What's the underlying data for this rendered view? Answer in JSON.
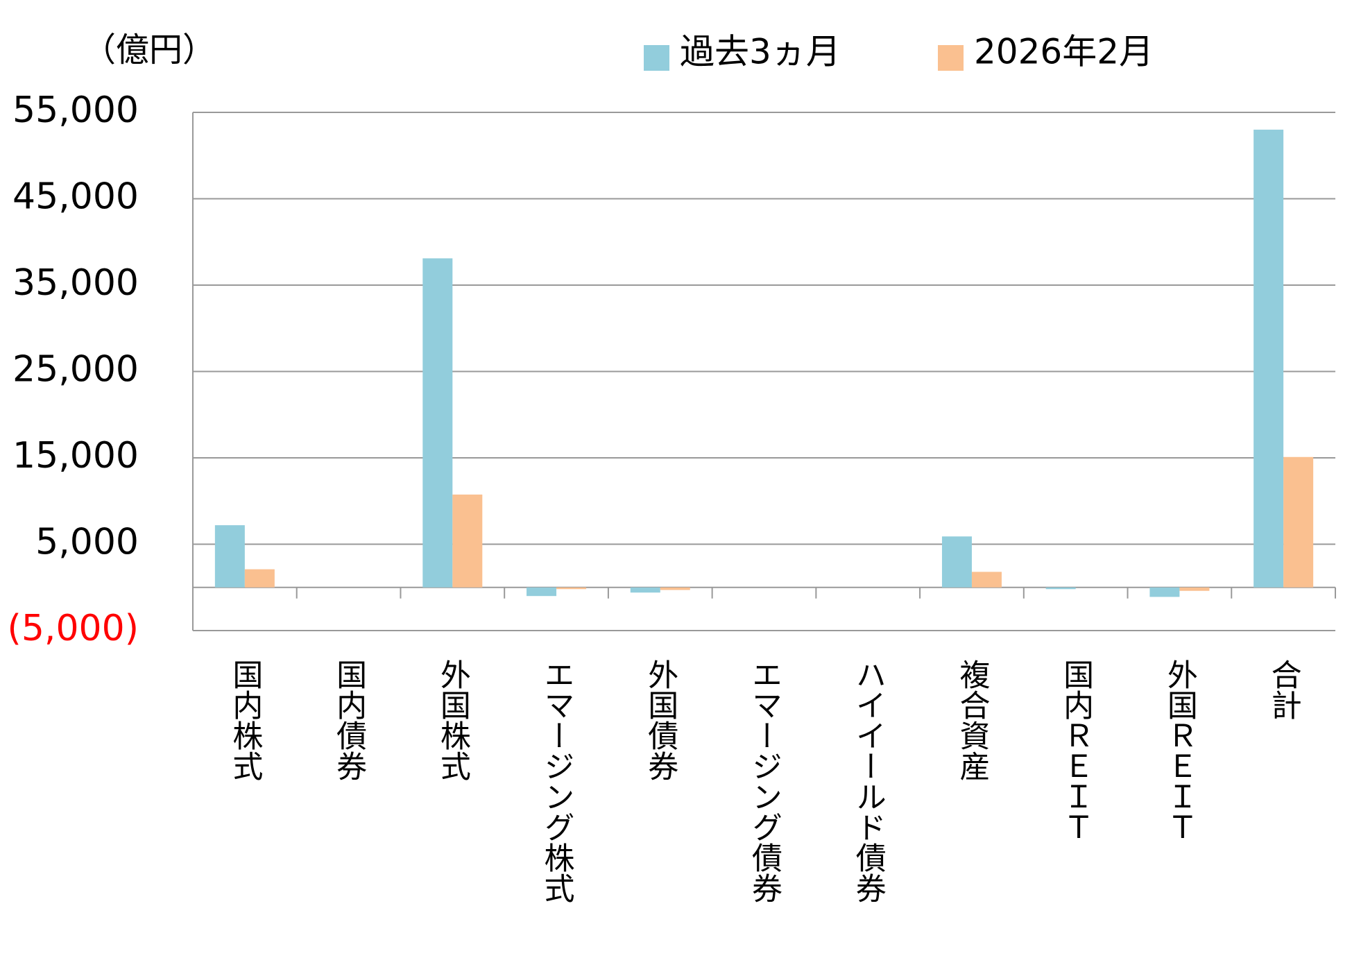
{
  "chart_data": {
    "type": "bar",
    "unit_label": "（億円）",
    "categories": [
      "国内株式",
      "国内債券",
      "外国株式",
      "エマージング株式",
      "外国債券",
      "エマージング債券",
      "ハイイールド債券",
      "複合資産",
      "国内ＲＥＩＴ",
      "外国ＲＥＩＴ",
      "合計"
    ],
    "series": [
      {
        "name": "過去3ヵ月",
        "color": "#92cddc",
        "values": [
          7200,
          0,
          38100,
          -1000,
          -600,
          0,
          0,
          5900,
          -200,
          -1100,
          53000
        ]
      },
      {
        "name": "2026年2月",
        "color": "#fac090",
        "values": [
          2100,
          0,
          10750,
          -200,
          -300,
          0,
          0,
          1800,
          0,
          -400,
          15100
        ]
      }
    ],
    "ylim": [
      -5000,
      55000
    ],
    "yticks": [
      {
        "value": -5000,
        "label": "(5,000)"
      },
      {
        "value": 5000,
        "label": "5,000"
      },
      {
        "value": 15000,
        "label": "15,000"
      },
      {
        "value": 25000,
        "label": "25,000"
      },
      {
        "value": 35000,
        "label": "35,000"
      },
      {
        "value": 45000,
        "label": "45,000"
      },
      {
        "value": 55000,
        "label": "55,000"
      }
    ],
    "negative_tick_color": "#ff0000",
    "grid": true
  }
}
